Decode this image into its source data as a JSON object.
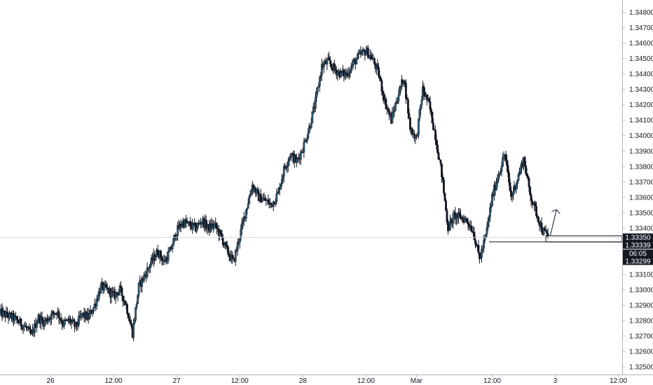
{
  "chart_data": {
    "type": "candlestick",
    "instrument_price_unit": "",
    "ylim": [
      1.3245,
      1.3488
    ],
    "yticks": [
      "1.34800",
      "1.34700",
      "1.34600",
      "1.34500",
      "1.34400",
      "1.34300",
      "1.34200",
      "1.34100",
      "1.34000",
      "1.33900",
      "1.33800",
      "1.33700",
      "1.33600",
      "1.33500",
      "1.33400",
      "1.33100",
      "1.33000",
      "1.32900",
      "1.32800",
      "1.32700",
      "1.32600",
      "1.32500"
    ],
    "xticks": [
      {
        "label": "26",
        "slot": 8
      },
      {
        "label": "12:00",
        "slot": 18
      },
      {
        "label": "27",
        "slot": 28
      },
      {
        "label": "12:00",
        "slot": 38
      },
      {
        "label": "28",
        "slot": 48
      },
      {
        "label": "12:00",
        "slot": 58
      },
      {
        "label": "Mar",
        "slot": 66
      },
      {
        "label": "12:00",
        "slot": 78
      },
      {
        "label": "3",
        "slot": 88
      },
      {
        "label": "12:00",
        "slot": 98
      }
    ],
    "slots_visible": 98.6,
    "close_path": [
      [
        0,
        1.3285
      ],
      [
        2,
        1.3282
      ],
      [
        4,
        1.3276
      ],
      [
        5,
        1.327
      ],
      [
        6,
        1.3282
      ],
      [
        7,
        1.3279
      ],
      [
        8,
        1.3283
      ],
      [
        9,
        1.3286
      ],
      [
        10,
        1.3278
      ],
      [
        11,
        1.328
      ],
      [
        12,
        1.3276
      ],
      [
        13,
        1.3284
      ],
      [
        14,
        1.3282
      ],
      [
        15,
        1.329
      ],
      [
        16,
        1.3302
      ],
      [
        17,
        1.33
      ],
      [
        18,
        1.3296
      ],
      [
        19,
        1.33
      ],
      [
        20,
        1.329
      ],
      [
        21,
        1.3272
      ],
      [
        22,
        1.3302
      ],
      [
        23,
        1.331
      ],
      [
        24,
        1.3318
      ],
      [
        25,
        1.3325
      ],
      [
        26,
        1.3318
      ],
      [
        27,
        1.3325
      ],
      [
        28,
        1.3338
      ],
      [
        29,
        1.3344
      ],
      [
        30,
        1.3342
      ],
      [
        31,
        1.334
      ],
      [
        32,
        1.3345
      ],
      [
        33,
        1.334
      ],
      [
        34,
        1.3342
      ],
      [
        35,
        1.3335
      ],
      [
        36,
        1.3325
      ],
      [
        37,
        1.3318
      ],
      [
        38,
        1.3335
      ],
      [
        39,
        1.3352
      ],
      [
        40,
        1.3368
      ],
      [
        41,
        1.336
      ],
      [
        42,
        1.3358
      ],
      [
        43,
        1.3355
      ],
      [
        44,
        1.3362
      ],
      [
        45,
        1.3378
      ],
      [
        46,
        1.3388
      ],
      [
        47,
        1.3383
      ],
      [
        48,
        1.3392
      ],
      [
        49,
        1.3405
      ],
      [
        50,
        1.3422
      ],
      [
        51,
        1.3445
      ],
      [
        52,
        1.3448
      ],
      [
        53,
        1.3443
      ],
      [
        54,
        1.344
      ],
      [
        55,
        1.344
      ],
      [
        56,
        1.3447
      ],
      [
        57,
        1.3452
      ],
      [
        58,
        1.3455
      ],
      [
        59,
        1.345
      ],
      [
        60,
        1.344
      ],
      [
        61,
        1.3422
      ],
      [
        62,
        1.341
      ],
      [
        63,
        1.3425
      ],
      [
        64,
        1.3438
      ],
      [
        65,
        1.3405
      ],
      [
        66,
        1.3398
      ],
      [
        67,
        1.343
      ],
      [
        68,
        1.342
      ],
      [
        69,
        1.34
      ],
      [
        70,
        1.3375
      ],
      [
        71,
        1.334
      ],
      [
        72,
        1.3348
      ],
      [
        73,
        1.3347
      ],
      [
        74,
        1.3345
      ],
      [
        75,
        1.3338
      ],
      [
        76,
        1.332
      ],
      [
        77,
        1.3335
      ],
      [
        78,
        1.336
      ],
      [
        79,
        1.3375
      ],
      [
        80,
        1.3388
      ],
      [
        81,
        1.336
      ],
      [
        82,
        1.3372
      ],
      [
        83,
        1.3385
      ],
      [
        84,
        1.3362
      ],
      [
        85,
        1.335
      ],
      [
        86,
        1.3338
      ],
      [
        87,
        1.3335
      ]
    ],
    "markers": {
      "h_line_price": 1.33339,
      "h_line_start_slot": 77.5,
      "box_top": 1.3335,
      "box_bottom": 1.3331,
      "box_start_slot": 86.5,
      "crosshair_price": 1.33339,
      "arrow_from": [
        87.2,
        1.3335
      ],
      "arrow_to": [
        88.2,
        1.3352
      ]
    },
    "price_labels": [
      {
        "text": "1.33350",
        "price": 1.3335,
        "color": "#131722"
      },
      {
        "text": "1.33339",
        "price": 1.33339,
        "color": "#131722"
      },
      {
        "text": "06:05",
        "price": 1.33315,
        "color": "#131722"
      },
      {
        "text": "1.33299",
        "price": 1.33299,
        "color": "#131722"
      }
    ],
    "colors": {
      "candle": "#131722",
      "background": "#ffffff",
      "axis_text": "#131722",
      "crosshair": "#d1d4dc"
    }
  }
}
